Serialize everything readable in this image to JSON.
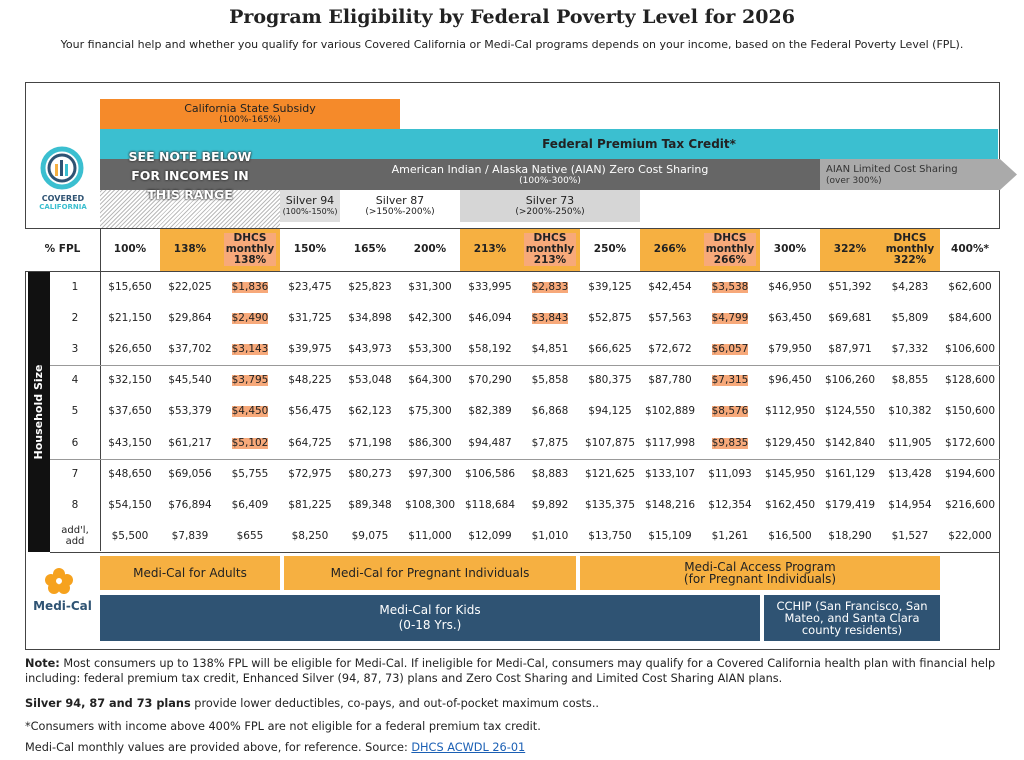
{
  "header": {
    "title": "Program Eligibility by Federal Poverty Level for 2026",
    "subtitle": "Your financial help and whether you qualify for various Covered California or Medi-Cal programs depends on your income, based on the Federal Poverty Level (FPL)."
  },
  "logos": {
    "covered_line1": "COVERED",
    "covered_line2": "CALIFORNIA",
    "medi_cal": "Medi-Cal"
  },
  "bands": {
    "state_subsidy": {
      "label": "California State Subsidy",
      "range": "(100%-165%)"
    },
    "ptc": "Federal Premium Tax Credit*",
    "see_note": "SEE NOTE BELOW FOR INCOMES IN THIS RANGE",
    "aian_zero": {
      "label": "American Indian / Alaska Native (AIAN) Zero Cost Sharing",
      "range": "(100%-300%)"
    },
    "aian_limited": {
      "label": "AIAN Limited Cost Sharing",
      "range": "(over 300%)"
    },
    "silver_94": {
      "label": "Silver 94",
      "range": "(100%-150%)"
    },
    "silver_87": {
      "label": "Silver 87",
      "range": "(>150%-200%)"
    },
    "silver_73": {
      "label": "Silver 73",
      "range": "(>200%-250%)"
    }
  },
  "table": {
    "side_label": "Household Size",
    "columns": [
      "% FPL",
      "100%",
      "138%",
      "DHCS monthly 138%",
      "150%",
      "165%",
      "200%",
      "213%",
      "DHCS monthly 213%",
      "250%",
      "266%",
      "DHCS monthly 266%",
      "300%",
      "322%",
      "DHCS monthly 322%",
      "400%*"
    ],
    "rows": [
      [
        "1",
        "$15,650",
        "$22,025",
        "$1,836",
        "$23,475",
        "$25,823",
        "$31,300",
        "$33,995",
        "$2,833",
        "$39,125",
        "$42,454",
        "$3,538",
        "$46,950",
        "$51,392",
        "$4,283",
        "$62,600"
      ],
      [
        "2",
        "$21,150",
        "$29,864",
        "$2,490",
        "$31,725",
        "$34,898",
        "$42,300",
        "$46,094",
        "$3,843",
        "$52,875",
        "$57,563",
        "$4,799",
        "$63,450",
        "$69,681",
        "$5,809",
        "$84,600"
      ],
      [
        "3",
        "$26,650",
        "$37,702",
        "$3,143",
        "$39,975",
        "$43,973",
        "$53,300",
        "$58,192",
        "$4,851",
        "$66,625",
        "$72,672",
        "$6,057",
        "$79,950",
        "$87,971",
        "$7,332",
        "$106,600"
      ],
      [
        "4",
        "$32,150",
        "$45,540",
        "$3,795",
        "$48,225",
        "$53,048",
        "$64,300",
        "$70,290",
        "$5,858",
        "$80,375",
        "$87,780",
        "$7,315",
        "$96,450",
        "$106,260",
        "$8,855",
        "$128,600"
      ],
      [
        "5",
        "$37,650",
        "$53,379",
        "$4,450",
        "$56,475",
        "$62,123",
        "$75,300",
        "$82,389",
        "$6,868",
        "$94,125",
        "$102,889",
        "$8,576",
        "$112,950",
        "$124,550",
        "$10,382",
        "$150,600"
      ],
      [
        "6",
        "$43,150",
        "$61,217",
        "$5,102",
        "$64,725",
        "$71,198",
        "$86,300",
        "$94,487",
        "$7,875",
        "$107,875",
        "$117,998",
        "$9,835",
        "$129,450",
        "$142,840",
        "$11,905",
        "$172,600"
      ],
      [
        "7",
        "$48,650",
        "$69,056",
        "$5,755",
        "$72,975",
        "$80,273",
        "$97,300",
        "$106,586",
        "$8,883",
        "$121,625",
        "$133,107",
        "$11,093",
        "$145,950",
        "$161,129",
        "$13,428",
        "$194,600"
      ],
      [
        "8",
        "$54,150",
        "$76,894",
        "$6,409",
        "$81,225",
        "$89,348",
        "$108,300",
        "$118,684",
        "$9,892",
        "$135,375",
        "$148,216",
        "$12,354",
        "$162,450",
        "$179,419",
        "$14,954",
        "$216,600"
      ],
      [
        "add'l, add",
        "$5,500",
        "$7,839",
        "$655",
        "$8,250",
        "$9,075",
        "$11,000",
        "$12,099",
        "$1,010",
        "$13,750",
        "$15,109",
        "$1,261",
        "$16,500",
        "$18,290",
        "$1,527",
        "$22,000"
      ]
    ]
  },
  "medi_cal_programs": {
    "adults": "Medi-Cal for Adults",
    "pregnant": "Medi-Cal for Pregnant Individuals",
    "access": {
      "label": "Medi-Cal Access Program",
      "sub": "(for Pregnant Individuals)"
    },
    "kids": {
      "label": "Medi-Cal for Kids",
      "sub": "(0-18 Yrs.)"
    },
    "cchip": "CCHIP (San Francisco, San Mateo, and Santa Clara county residents)"
  },
  "notes": {
    "note_label": "Note:",
    "note_text": "Most consumers up to 138% FPL will be eligible for Medi-Cal. If ineligible for Medi-Cal, consumers may qualify for a Covered California health plan with financial help including: federal premium tax credit, Enhanced Silver (94, 87, 73) plans and Zero Cost Sharing and Limited Cost Sharing AIAN plans.",
    "silver_label": "Silver 94, 87 and 73 plans",
    "silver_text": "provide lower deductibles, co-pays, and out-of-pocket maximum costs..",
    "ptc_note": "*Consumers with income above 400% FPL are not eligible for a federal premium tax credit.",
    "source_text": "Medi-Cal monthly values are provided above, for reference. Source:",
    "source_link": "DHCS ACWDL 26-01"
  }
}
